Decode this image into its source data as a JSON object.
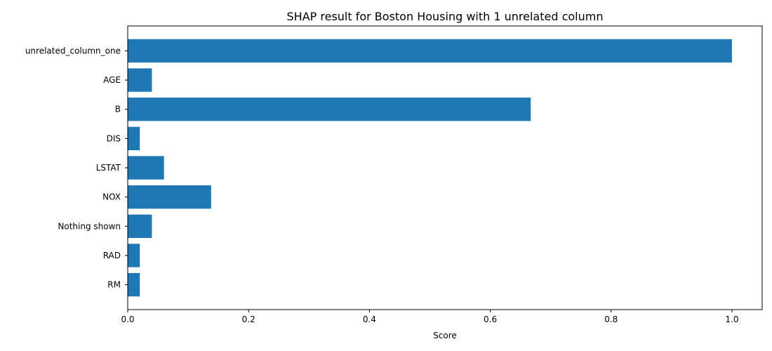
{
  "chart_data": {
    "type": "bar",
    "orientation": "horizontal",
    "title": "SHAP result for Boston Housing with 1 unrelated column",
    "xlabel": "Score",
    "ylabel": "",
    "categories": [
      "unrelated_column_one",
      "AGE",
      "B",
      "DIS",
      "LSTAT",
      "NOX",
      "Nothing shown",
      "RAD",
      "RM"
    ],
    "values": [
      1.0,
      0.04,
      0.667,
      0.02,
      0.06,
      0.138,
      0.04,
      0.02,
      0.02
    ],
    "xlim": [
      0,
      1.05
    ],
    "xticks": [
      0.0,
      0.2,
      0.4,
      0.6,
      0.8,
      1.0
    ],
    "xtick_labels": [
      "0.0",
      "0.2",
      "0.4",
      "0.6",
      "0.8",
      "1.0"
    ],
    "grid": false,
    "legend": "none",
    "bar_color": "#1f77b4"
  }
}
